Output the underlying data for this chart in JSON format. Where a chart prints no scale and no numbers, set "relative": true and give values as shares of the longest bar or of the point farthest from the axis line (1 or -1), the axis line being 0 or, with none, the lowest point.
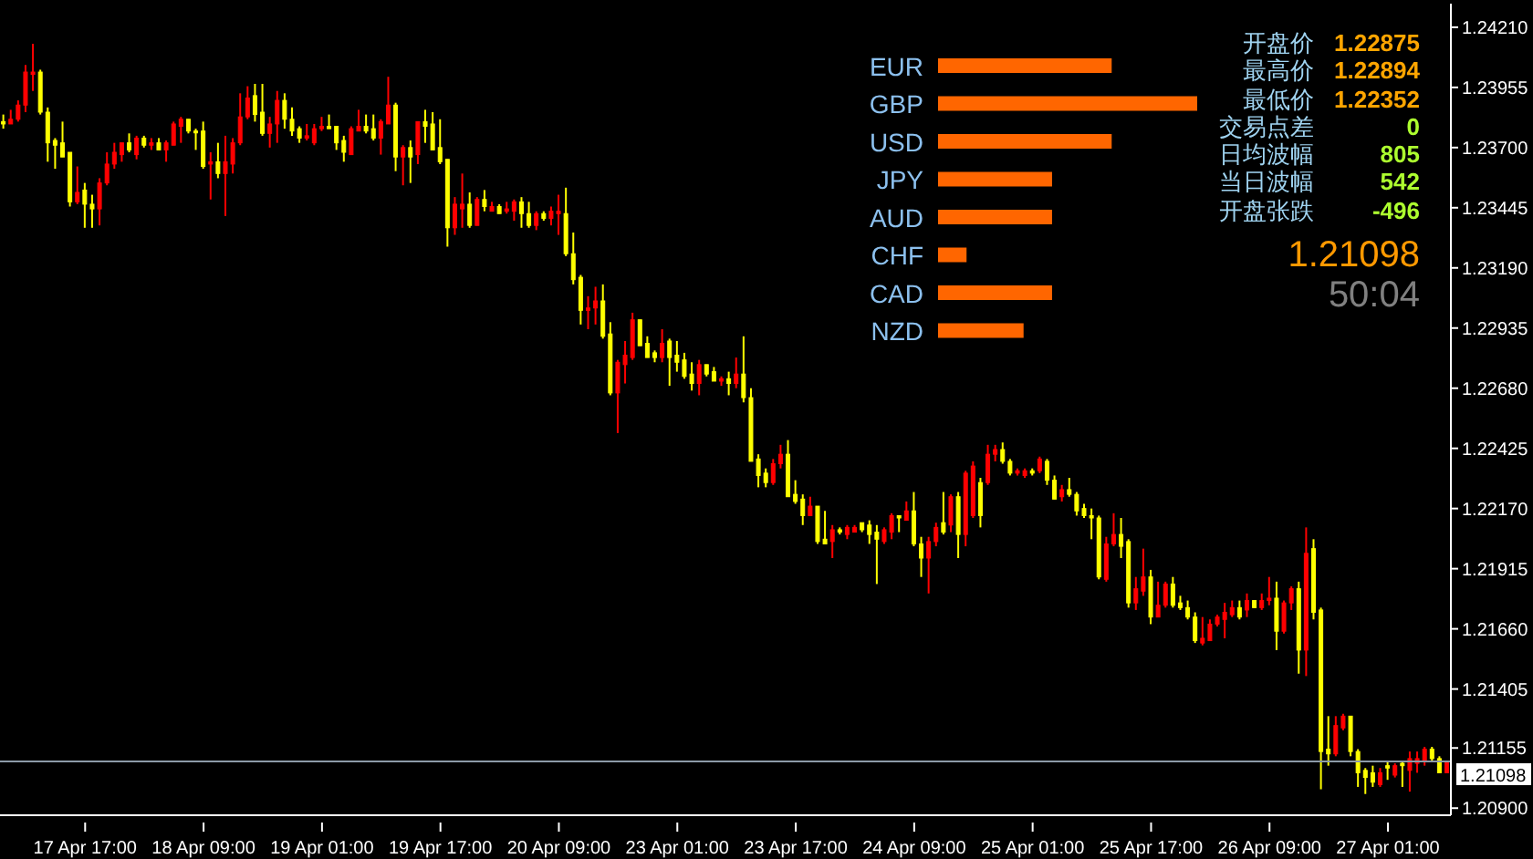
{
  "chart_data": [
    {
      "type": "candlestick",
      "categories": [
        null,
        null,
        null,
        null,
        null,
        null,
        null,
        null,
        null,
        null,
        null,
        "17 Apr 17:00",
        null,
        null,
        null,
        null,
        null,
        null,
        null,
        null,
        null,
        null,
        null,
        null,
        null,
        null,
        null,
        "18 Apr 09:00",
        null,
        null,
        null,
        null,
        null,
        null,
        null,
        null,
        null,
        null,
        null,
        null,
        null,
        null,
        null,
        "19 Apr 01:00",
        null,
        null,
        null,
        null,
        null,
        null,
        null,
        null,
        null,
        null,
        null,
        null,
        null,
        null,
        null,
        "19 Apr 17:00",
        null,
        null,
        null,
        null,
        null,
        null,
        null,
        null,
        null,
        null,
        null,
        null,
        null,
        null,
        null,
        "20 Apr 09:00",
        null,
        null,
        null,
        null,
        null,
        null,
        null,
        null,
        null,
        null,
        null,
        null,
        null,
        null,
        null,
        "23 Apr 01:00",
        null,
        null,
        null,
        null,
        null,
        null,
        null,
        null,
        null,
        null,
        null,
        null,
        null,
        null,
        null,
        "23 Apr 17:00",
        null,
        null,
        null,
        null,
        null,
        null,
        null,
        null,
        null,
        null,
        null,
        null,
        null,
        null,
        null,
        "24 Apr 09:00",
        null,
        null,
        null,
        null,
        null,
        null,
        null,
        null,
        null,
        null,
        null,
        null,
        null,
        null,
        null,
        "25 Apr 01:00",
        null,
        null,
        null,
        null,
        null,
        null,
        null,
        null,
        null,
        null,
        null,
        null,
        null,
        null,
        null,
        "25 Apr 17:00",
        null,
        null,
        null,
        null,
        null,
        null,
        null,
        null,
        null,
        null,
        null,
        null,
        null,
        null,
        null,
        "26 Apr 09:00",
        null,
        null,
        null,
        null,
        null,
        null,
        null,
        null,
        null,
        null,
        null,
        null,
        null,
        null,
        null,
        "27 Apr 01:00",
        null,
        null,
        null,
        null,
        null,
        null,
        null,
        null
      ],
      "ohlc": [
        [
          1.2381,
          1.2384,
          1.2378,
          1.238
        ],
        [
          1.238,
          1.2386,
          1.238,
          1.2382
        ],
        [
          1.2382,
          1.239,
          1.2381,
          1.2388
        ],
        [
          1.2388,
          1.2405,
          1.2385,
          1.2402
        ],
        [
          1.2401,
          1.2414,
          1.2394,
          1.2402
        ],
        [
          1.2402,
          1.2403,
          1.2384,
          1.2385
        ],
        [
          1.2385,
          1.2387,
          1.2364,
          1.2372
        ],
        [
          1.2373,
          1.2374,
          1.2361,
          1.2371
        ],
        [
          1.2372,
          1.2381,
          1.2366,
          1.2366
        ],
        [
          1.2368,
          1.2368,
          1.2345,
          1.2347
        ],
        [
          1.2347,
          1.2362,
          1.2346,
          1.2351
        ],
        [
          1.2352,
          1.2355,
          1.2336,
          1.2346
        ],
        [
          1.2346,
          1.235,
          1.2336,
          1.2344
        ],
        [
          1.2344,
          1.2357,
          1.2337,
          1.2355
        ],
        [
          1.2355,
          1.2368,
          1.2354,
          1.2363
        ],
        [
          1.2363,
          1.2372,
          1.2361,
          1.2368
        ],
        [
          1.2367,
          1.2372,
          1.2364,
          1.2372
        ],
        [
          1.2372,
          1.2376,
          1.2368,
          1.2369
        ],
        [
          1.2367,
          1.2375,
          1.2365,
          1.2374
        ],
        [
          1.2374,
          1.2375,
          1.237,
          1.2371
        ],
        [
          1.2371,
          1.2374,
          1.2369,
          1.2372
        ],
        [
          1.2372,
          1.2374,
          1.2369,
          1.2369
        ],
        [
          1.2369,
          1.2373,
          1.2364,
          1.2372
        ],
        [
          1.2371,
          1.2381,
          1.2371,
          1.238
        ],
        [
          1.2379,
          1.2383,
          1.2372,
          1.2382
        ],
        [
          1.2382,
          1.2382,
          1.2376,
          1.2377
        ],
        [
          1.2377,
          1.2378,
          1.2369,
          1.2377
        ],
        [
          1.2377,
          1.2381,
          1.2361,
          1.2362
        ],
        [
          1.2363,
          1.2368,
          1.2348,
          1.2364
        ],
        [
          1.2364,
          1.2372,
          1.2357,
          1.2359
        ],
        [
          1.2359,
          1.2375,
          1.2341,
          1.2364
        ],
        [
          1.2363,
          1.2374,
          1.2359,
          1.2372
        ],
        [
          1.2372,
          1.2393,
          1.2371,
          1.2383
        ],
        [
          1.2383,
          1.2396,
          1.2382,
          1.2391
        ],
        [
          1.2392,
          1.2397,
          1.2381,
          1.2384
        ],
        [
          1.2385,
          1.2397,
          1.2375,
          1.2376
        ],
        [
          1.2376,
          1.2383,
          1.237,
          1.238
        ],
        [
          1.238,
          1.2394,
          1.2372,
          1.239
        ],
        [
          1.239,
          1.2393,
          1.2378,
          1.2382
        ],
        [
          1.2382,
          1.2387,
          1.2375,
          1.2377
        ],
        [
          1.2378,
          1.2379,
          1.2372,
          1.2374
        ],
        [
          1.2374,
          1.238,
          1.2373,
          1.2375
        ],
        [
          1.2372,
          1.238,
          1.2371,
          1.2378
        ],
        [
          1.2378,
          1.2383,
          1.2377,
          1.2379
        ],
        [
          1.2379,
          1.2384,
          1.2378,
          1.2378
        ],
        [
          1.2379,
          1.2379,
          1.2369,
          1.2372
        ],
        [
          1.2373,
          1.2375,
          1.2364,
          1.2368
        ],
        [
          1.2367,
          1.2379,
          1.2367,
          1.2378
        ],
        [
          1.2377,
          1.2386,
          1.2377,
          1.2379
        ],
        [
          1.2379,
          1.2384,
          1.2376,
          1.2377
        ],
        [
          1.2378,
          1.2384,
          1.2373,
          1.2374
        ],
        [
          1.2374,
          1.2382,
          1.2367,
          1.2381
        ],
        [
          1.238,
          1.24,
          1.238,
          1.2388
        ],
        [
          1.2388,
          1.2389,
          1.236,
          1.2366
        ],
        [
          1.2366,
          1.2371,
          1.2354,
          1.237
        ],
        [
          1.237,
          1.2373,
          1.2355,
          1.2366
        ],
        [
          1.2367,
          1.2381,
          1.2363,
          1.2381
        ],
        [
          1.2381,
          1.2386,
          1.2372,
          1.2379
        ],
        [
          1.238,
          1.2385,
          1.2369,
          1.2369
        ],
        [
          1.237,
          1.2382,
          1.2363,
          1.2364
        ],
        [
          1.2365,
          1.2365,
          1.2328,
          1.2336
        ],
        [
          1.2336,
          1.2349,
          1.2333,
          1.2346
        ],
        [
          1.2344,
          1.2359,
          1.2336,
          1.2346
        ],
        [
          1.2346,
          1.2351,
          1.2336,
          1.2337
        ],
        [
          1.2337,
          1.2349,
          1.2337,
          1.2348
        ],
        [
          1.2348,
          1.2352,
          1.2343,
          1.2345
        ],
        [
          1.2343,
          1.2347,
          1.2343,
          1.2345
        ],
        [
          1.2345,
          1.2346,
          1.2342,
          1.2342
        ],
        [
          1.2343,
          1.2347,
          1.2342,
          1.2344
        ],
        [
          1.2343,
          1.2348,
          1.2339,
          1.2347
        ],
        [
          1.2347,
          1.2349,
          1.2336,
          1.2342
        ],
        [
          1.2342,
          1.2347,
          1.2336,
          1.2337
        ],
        [
          1.2337,
          1.2343,
          1.2335,
          1.2342
        ],
        [
          1.2342,
          1.2343,
          1.2339,
          1.234
        ],
        [
          1.234,
          1.2345,
          1.2337,
          1.2343
        ],
        [
          1.2342,
          1.235,
          1.2333,
          1.2343
        ],
        [
          1.2342,
          1.2353,
          1.2324,
          1.2325
        ],
        [
          1.2325,
          1.2334,
          1.2312,
          1.2314
        ],
        [
          1.2315,
          1.2316,
          1.2295,
          1.2301
        ],
        [
          1.2301,
          1.2307,
          1.2293,
          1.2302
        ],
        [
          1.2302,
          1.2311,
          1.2295,
          1.2305
        ],
        [
          1.2305,
          1.2312,
          1.2289,
          1.229
        ],
        [
          1.2291,
          1.2296,
          1.2265,
          1.2266
        ],
        [
          1.2266,
          1.228,
          1.2249,
          1.2279
        ],
        [
          1.2278,
          1.2288,
          1.227,
          1.2282
        ],
        [
          1.2281,
          1.23,
          1.228,
          1.2297
        ],
        [
          1.2297,
          1.2297,
          1.2286,
          1.2286
        ],
        [
          1.2287,
          1.229,
          1.2281,
          1.2281
        ],
        [
          1.2283,
          1.2284,
          1.2279,
          1.2281
        ],
        [
          1.2281,
          1.2293,
          1.2279,
          1.2287
        ],
        [
          1.2288,
          1.2289,
          1.2269,
          1.2281
        ],
        [
          1.2282,
          1.2288,
          1.2275,
          1.2279
        ],
        [
          1.228,
          1.2283,
          1.2272,
          1.2273
        ],
        [
          1.2274,
          1.2279,
          1.2267,
          1.227
        ],
        [
          1.227,
          1.228,
          1.2265,
          1.2278
        ],
        [
          1.2278,
          1.2278,
          1.2273,
          1.2274
        ],
        [
          1.2275,
          1.2277,
          1.2271,
          1.2271
        ],
        [
          1.2271,
          1.2273,
          1.2269,
          1.2272
        ],
        [
          1.2272,
          1.2275,
          1.2265,
          1.227
        ],
        [
          1.227,
          1.2281,
          1.2268,
          1.2274
        ],
        [
          1.2274,
          1.229,
          1.2262,
          1.2264
        ],
        [
          1.2264,
          1.2268,
          1.2237,
          1.2237
        ],
        [
          1.2238,
          1.224,
          1.2226,
          1.2231
        ],
        [
          1.2232,
          1.2234,
          1.2226,
          1.2228
        ],
        [
          1.2228,
          1.2238,
          1.2227,
          1.2236
        ],
        [
          1.2236,
          1.2244,
          1.2234,
          1.224
        ],
        [
          1.224,
          1.2246,
          1.2222,
          1.2222
        ],
        [
          1.2223,
          1.2229,
          1.2219,
          1.222
        ],
        [
          1.2221,
          1.2223,
          1.221,
          1.2214
        ],
        [
          1.2214,
          1.2222,
          1.2214,
          1.2218
        ],
        [
          1.2218,
          1.2218,
          1.2202,
          1.2203
        ],
        [
          1.2204,
          1.2216,
          1.2202,
          1.2202
        ],
        [
          1.2203,
          1.221,
          1.2196,
          1.2208
        ],
        [
          1.2208,
          1.2209,
          1.2206,
          1.2207
        ],
        [
          1.2206,
          1.221,
          1.2204,
          1.2209
        ],
        [
          1.2207,
          1.221,
          1.2207,
          1.2209
        ],
        [
          1.2211,
          1.2211,
          1.2207,
          1.2208
        ],
        [
          1.221,
          1.2212,
          1.2202,
          1.2206
        ],
        [
          1.2207,
          1.221,
          1.2185,
          1.2204
        ],
        [
          1.2203,
          1.2209,
          1.2202,
          1.2208
        ],
        [
          1.2207,
          1.2215,
          1.2204,
          1.2214
        ],
        [
          1.2214,
          1.2214,
          1.2207,
          1.2213
        ],
        [
          1.2212,
          1.222,
          1.2212,
          1.2216
        ],
        [
          1.2216,
          1.2224,
          1.2201,
          1.2202
        ],
        [
          1.2202,
          1.2205,
          1.2188,
          1.2196
        ],
        [
          1.2196,
          1.2205,
          1.2181,
          1.2203
        ],
        [
          1.2203,
          1.2211,
          1.2201,
          1.2209
        ],
        [
          1.2211,
          1.2224,
          1.2206,
          1.2207
        ],
        [
          1.221,
          1.2223,
          1.2207,
          1.2222
        ],
        [
          1.2222,
          1.2224,
          1.2196,
          1.2206
        ],
        [
          1.2206,
          1.2233,
          1.2201,
          1.2232
        ],
        [
          1.2214,
          1.2237,
          1.2213,
          1.2235
        ],
        [
          1.2228,
          1.223,
          1.2209,
          1.2214
        ],
        [
          1.2228,
          1.2244,
          1.2227,
          1.224
        ],
        [
          1.224,
          1.2244,
          1.2237,
          1.2242
        ],
        [
          1.2242,
          1.2245,
          1.2236,
          1.2237
        ],
        [
          1.2237,
          1.2238,
          1.2231,
          1.2232
        ],
        [
          1.2232,
          1.2234,
          1.2231,
          1.2233
        ],
        [
          1.2231,
          1.2234,
          1.223,
          1.2233
        ],
        [
          1.2233,
          1.2234,
          1.2231,
          1.2232
        ],
        [
          1.2233,
          1.2239,
          1.2232,
          1.2238
        ],
        [
          1.2237,
          1.2238,
          1.2227,
          1.2229
        ],
        [
          1.2229,
          1.2231,
          1.2221,
          1.2221
        ],
        [
          1.2222,
          1.2227,
          1.222,
          1.2225
        ],
        [
          1.2225,
          1.223,
          1.2222,
          1.2223
        ],
        [
          1.2223,
          1.2224,
          1.2214,
          1.2216
        ],
        [
          1.2217,
          1.2219,
          1.2213,
          1.2214
        ],
        [
          1.2214,
          1.2217,
          1.2204,
          1.2213
        ],
        [
          1.2213,
          1.2214,
          1.2187,
          1.2188
        ],
        [
          1.2187,
          1.2205,
          1.2186,
          1.2202
        ],
        [
          1.2202,
          1.2215,
          1.2201,
          1.2206
        ],
        [
          1.2206,
          1.2213,
          1.2196,
          1.2201
        ],
        [
          1.2203,
          1.2204,
          1.2175,
          1.2177
        ],
        [
          1.2177,
          1.2188,
          1.2174,
          1.2183
        ],
        [
          1.2182,
          1.22,
          1.218,
          1.2188
        ],
        [
          1.2188,
          1.2191,
          1.2168,
          1.2171
        ],
        [
          1.2171,
          1.2186,
          1.2171,
          1.2176
        ],
        [
          1.2176,
          1.2186,
          1.2175,
          1.2185
        ],
        [
          1.2185,
          1.2188,
          1.2175,
          1.2176
        ],
        [
          1.2177,
          1.218,
          1.2174,
          1.2175
        ],
        [
          1.2175,
          1.2178,
          1.217,
          1.2171
        ],
        [
          1.2171,
          1.2173,
          1.216,
          1.2161
        ],
        [
          1.216,
          1.2171,
          1.2159,
          1.2162
        ],
        [
          1.2161,
          1.217,
          1.2161,
          1.2168
        ],
        [
          1.2168,
          1.2172,
          1.2167,
          1.2171
        ],
        [
          1.217,
          1.2177,
          1.2162,
          1.2173
        ],
        [
          1.2172,
          1.2178,
          1.2171,
          1.2175
        ],
        [
          1.2175,
          1.2178,
          1.217,
          1.2171
        ],
        [
          1.2174,
          1.2181,
          1.2171,
          1.2178
        ],
        [
          1.2178,
          1.2178,
          1.2175,
          1.2175
        ],
        [
          1.2175,
          1.2181,
          1.2174,
          1.2178
        ],
        [
          1.2178,
          1.2188,
          1.2176,
          1.2179
        ],
        [
          1.2179,
          1.2186,
          1.2157,
          1.2165
        ],
        [
          1.2165,
          1.2178,
          1.2164,
          1.2177
        ],
        [
          1.2177,
          1.2184,
          1.2174,
          1.2183
        ],
        [
          1.2183,
          1.2186,
          1.2147,
          1.2157
        ],
        [
          1.2157,
          1.2209,
          1.2146,
          1.2198
        ],
        [
          1.22,
          1.2204,
          1.217,
          1.2173
        ],
        [
          1.2174,
          1.2175,
          1.2098,
          1.2114
        ],
        [
          1.2115,
          1.2129,
          1.2108,
          1.2113
        ],
        [
          1.2113,
          1.2129,
          1.2112,
          1.2125
        ],
        [
          1.2124,
          1.213,
          1.2123,
          1.2129
        ],
        [
          1.2129,
          1.2129,
          1.2112,
          1.2114
        ],
        [
          1.2114,
          1.2115,
          1.2099,
          1.2105
        ],
        [
          1.2106,
          1.2107,
          1.2096,
          1.2103
        ],
        [
          1.2105,
          1.2108,
          1.2099,
          1.2101
        ],
        [
          1.21,
          1.2107,
          1.2099,
          1.2105
        ],
        [
          1.2108,
          1.211,
          1.2102,
          1.2107
        ],
        [
          1.2104,
          1.2109,
          1.2103,
          1.2108
        ],
        [
          1.2109,
          1.211,
          1.2099,
          1.2108
        ],
        [
          1.2106,
          1.2114,
          1.2097,
          1.2111
        ],
        [
          1.2109,
          1.2114,
          1.2105,
          1.2111
        ],
        [
          1.211,
          1.2116,
          1.2108,
          1.2115
        ],
        [
          1.2115,
          1.2116,
          1.211,
          1.2111
        ],
        [
          1.2111,
          1.2112,
          1.2105,
          1.2105
        ],
        [
          1.2105,
          1.211,
          1.2105,
          1.211
        ]
      ],
      "colors": [
        "#ffff00",
        "#ff0000",
        "#ff0000",
        "#ff0000",
        "#ff0000",
        "#ffff00",
        "#ffff00",
        "#ffff00",
        "#ffff00",
        "#ffff00",
        "#ff0000",
        "#ffff00",
        "#ffff00",
        "#ff0000",
        "#ff0000",
        "#ff0000",
        "#ff0000",
        "#ffff00",
        "#ff0000",
        "#ffff00",
        "#ff0000",
        "#ffff00",
        "#ff0000",
        "#ff0000",
        "#ff0000",
        "#ffff00",
        "#ffff00",
        "#ffff00",
        "#ff0000",
        "#ffff00",
        "#ff0000",
        "#ff0000",
        "#ff0000",
        "#ff0000",
        "#ffff00",
        "#ffff00",
        "#ff0000",
        "#ff0000",
        "#ffff00",
        "#ffff00",
        "#ffff00",
        "#ff0000",
        "#ff0000",
        "#ff0000",
        "#ffff00",
        "#ffff00",
        "#ffff00",
        "#ff0000",
        "#ff0000",
        "#ffff00",
        "#ffff00",
        "#ff0000",
        "#ff0000",
        "#ffff00",
        "#ff0000",
        "#ffff00",
        "#ff0000",
        "#ffff00",
        "#ffff00",
        "#ffff00",
        "#ffff00",
        "#ff0000",
        "#ff0000",
        "#ffff00",
        "#ff0000",
        "#ffff00",
        "#ff0000",
        "#ffff00",
        "#ff0000",
        "#ff0000",
        "#ffff00",
        "#ffff00",
        "#ff0000",
        "#ffff00",
        "#ff0000",
        "#ff0000",
        "#ffff00",
        "#ffff00",
        "#ffff00",
        "#ff0000",
        "#ff0000",
        "#ffff00",
        "#ffff00",
        "#ff0000",
        "#ff0000",
        "#ff0000",
        "#ffff00",
        "#ffff00",
        "#ffff00",
        "#ff0000",
        "#ffff00",
        "#ffff00",
        "#ffff00",
        "#ffff00",
        "#ff0000",
        "#ffff00",
        "#ffff00",
        "#ff0000",
        "#ffff00",
        "#ff0000",
        "#ffff00",
        "#ffff00",
        "#ffff00",
        "#ffff00",
        "#ff0000",
        "#ff0000",
        "#ffff00",
        "#ffff00",
        "#ffff00",
        "#ff0000",
        "#ffff00",
        "#ffff00",
        "#ff0000",
        "#ffff00",
        "#ff0000",
        "#ff0000",
        "#ffff00",
        "#ffff00",
        "#ffff00",
        "#ff0000",
        "#ff0000",
        "#ffff00",
        "#ff0000",
        "#ffff00",
        "#ffff00",
        "#ff0000",
        "#ff0000",
        "#ffff00",
        "#ff0000",
        "#ffff00",
        "#ff0000",
        "#ff0000",
        "#ffff00",
        "#ff0000",
        "#ff0000",
        "#ffff00",
        "#ffff00",
        "#ff0000",
        "#ff0000",
        "#ffff00",
        "#ff0000",
        "#ffff00",
        "#ffff00",
        "#ff0000",
        "#ffff00",
        "#ffff00",
        "#ffff00",
        "#ffff00",
        "#ffff00",
        "#ff0000",
        "#ff0000",
        "#ffff00",
        "#ffff00",
        "#ff0000",
        "#ff0000",
        "#ffff00",
        "#ff0000",
        "#ff0000",
        "#ffff00",
        "#ffff00",
        "#ffff00",
        "#ffff00",
        "#ff0000",
        "#ff0000",
        "#ff0000",
        "#ff0000",
        "#ff0000",
        "#ffff00",
        "#ff0000",
        "#ffff00",
        "#ff0000",
        "#ff0000",
        "#ffff00",
        "#ff0000",
        "#ff0000",
        "#ffff00",
        "#ff0000",
        "#ffff00",
        "#ffff00",
        "#ffff00",
        "#ff0000",
        "#ff0000",
        "#ffff00",
        "#ffff00",
        "#ffff00",
        "#ffff00",
        "#ff0000",
        "#ffff00",
        "#ff0000",
        "#ffff00",
        "#ff0000",
        "#ff0000",
        "#ff0000",
        "#ffff00",
        "#ffff00",
        "#ff0000"
      ],
      "ylim": [
        1.2087,
        1.2431
      ],
      "yticks": [
        {
          "value": 1.2421,
          "label": "1.24210"
        },
        {
          "value": 1.23955,
          "label": "1.23955"
        },
        {
          "value": 1.237,
          "label": "1.23700"
        },
        {
          "value": 1.23445,
          "label": "1.23445"
        },
        {
          "value": 1.2319,
          "label": "1.23190"
        },
        {
          "value": 1.22935,
          "label": "1.22935"
        },
        {
          "value": 1.2268,
          "label": "1.22680"
        },
        {
          "value": 1.22425,
          "label": "1.22425"
        },
        {
          "value": 1.2217,
          "label": "1.22170"
        },
        {
          "value": 1.21915,
          "label": "1.21915"
        },
        {
          "value": 1.2166,
          "label": "1.21660"
        },
        {
          "value": 1.21405,
          "label": "1.21405"
        },
        {
          "value": 1.21155,
          "label": "1.21155"
        },
        {
          "value": 1.209,
          "label": "1.20900"
        }
      ],
      "ref_lines": [
        {
          "axis": "y",
          "value": 1.21098,
          "label": "1.21098",
          "color": "#8c9aa8"
        }
      ],
      "annotations": [
        "开盘价 1.22875",
        "最高价 1.22894",
        "最低价 1.22352",
        "交易点差 0",
        "日均波幅 805",
        "当日波幅 542",
        "开盘张跌 -496",
        "1.21098",
        "50:04"
      ]
    },
    {
      "type": "bar",
      "orientation": "horizontal",
      "relative": true,
      "categories": [
        "EUR",
        "GBP",
        "USD",
        "JPY",
        "AUD",
        "CHF",
        "CAD",
        "NZD"
      ],
      "values": [
        0.67,
        1,
        0.67,
        0.44,
        0.44,
        0.11,
        0.44,
        0.33
      ],
      "color": "#ff6600"
    }
  ]
}
